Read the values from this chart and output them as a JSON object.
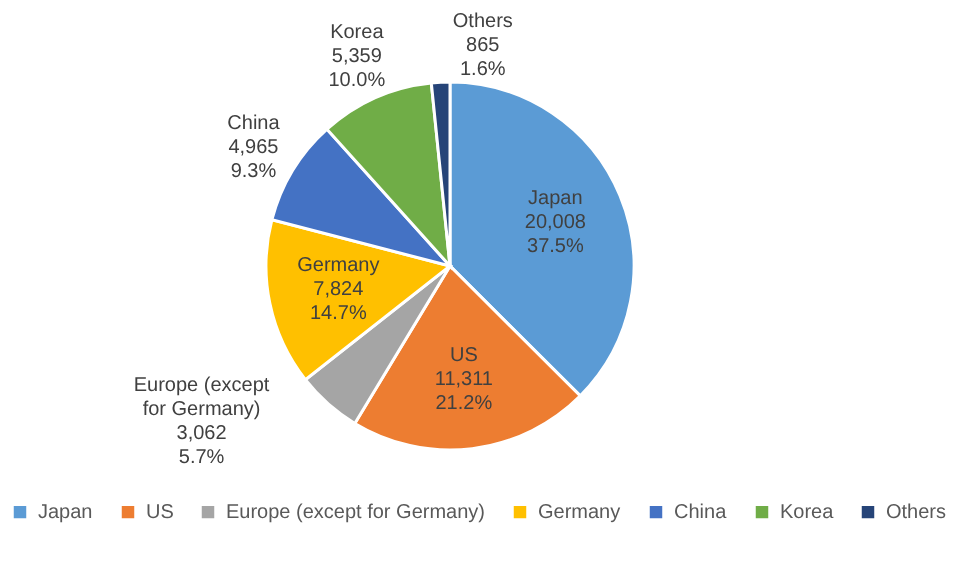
{
  "chart_data": {
    "type": "pie",
    "categories": [
      "Japan",
      "US",
      "Europe (except for Germany)",
      "Germany",
      "China",
      "Korea",
      "Others"
    ],
    "values": [
      20008,
      11311,
      3062,
      7824,
      4965,
      5359,
      865
    ],
    "colors": [
      "#5b9bd5",
      "#ed7d31",
      "#a5a5a5",
      "#ffc000",
      "#4472c4",
      "#70ad47",
      "#264478"
    ],
    "value_labels": [
      "20,008\n37.5%",
      "11,311\n21.2%",
      "3,062\n5.7%",
      "7,824\n14.7%",
      "4,965\n9.3%",
      "5,359\n10.0%",
      "865\n1.6%"
    ],
    "legend": "bottom"
  }
}
